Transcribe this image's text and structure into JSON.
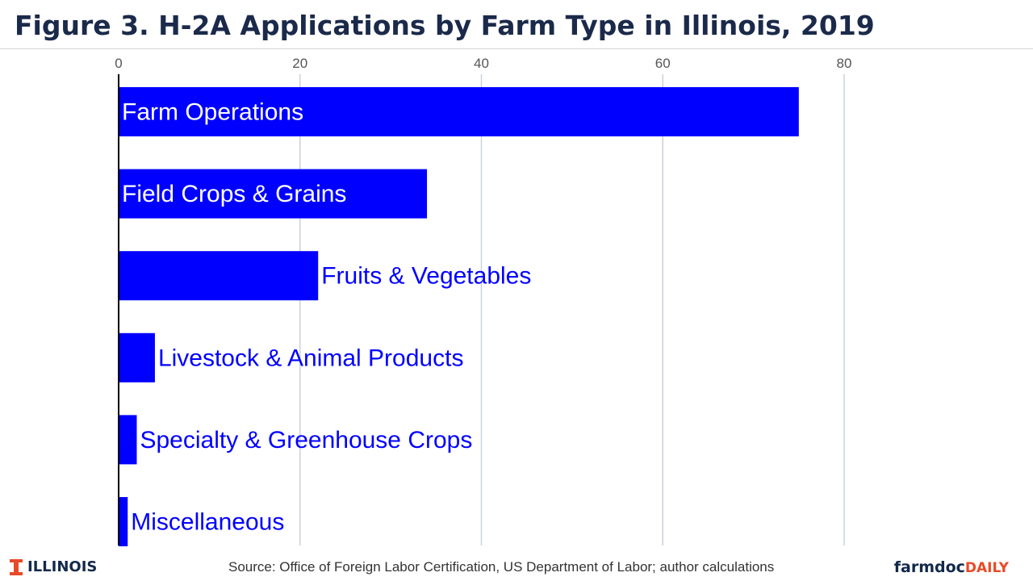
{
  "header": {
    "title": "Figure 3. H-2A Applications by Farm Type in Illinois, 2019"
  },
  "footer": {
    "brand": "ILLINOIS",
    "source": "Source: Office of Foreign Labor Certification, US Department of Labor; author calculations",
    "logo_part1": "farmdoc",
    "logo_part2": "DAILY"
  },
  "colors": {
    "bar": "#0000ff",
    "label": "#0000ff",
    "grid": "#cbd2da",
    "title": "#1b2a4a",
    "brand_orange": "#e84a27",
    "brand_navy": "#13294b"
  },
  "chart_data": {
    "type": "bar",
    "orientation": "horizontal",
    "title": "Figure 3. H-2A Applications by Farm Type in Illinois, 2019",
    "xlabel": "",
    "ylabel": "",
    "xlim": [
      0,
      80
    ],
    "x_ticks": [
      0,
      20,
      40,
      60,
      80
    ],
    "x_axis_position": "top",
    "grid": true,
    "categories": [
      "Farm Operations",
      "Field Crops & Grains",
      "Fruits & Vegetables",
      "Livestock & Animal Products",
      "Specialty & Greenhouse Crops",
      "Miscellaneous"
    ],
    "values": [
      75,
      34,
      22,
      4,
      2,
      1
    ]
  }
}
